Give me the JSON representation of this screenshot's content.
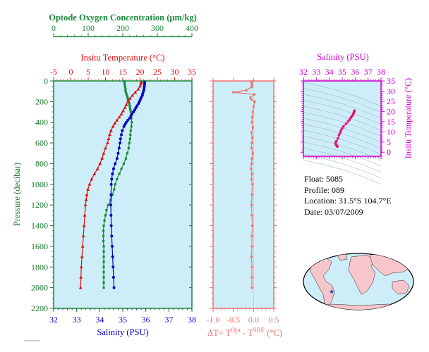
{
  "colors": {
    "oxygen": "#1a8a3a",
    "temperature": "#dd1111",
    "salinity": "#0000cc",
    "pressure_axis": "#1a7a2a",
    "delta": "#f07070",
    "ts": "#cc00cc",
    "plot_bg": "#cdeef8"
  },
  "chart_data": [
    {
      "type": "scatter",
      "name": "profiles",
      "axes": {
        "pressure": {
          "label": "Pressure (decibar)",
          "range": [
            0,
            2200
          ],
          "ticks": [
            0,
            200,
            400,
            600,
            800,
            1000,
            1200,
            1400,
            1600,
            1800,
            2000,
            2200
          ],
          "inverted": true
        },
        "salinity": {
          "label": "Salinity (PSU)",
          "range": [
            32,
            38
          ],
          "ticks": [
            32,
            33,
            34,
            35,
            36,
            37,
            38
          ]
        },
        "temperature": {
          "label": "Insitu Temperature (°C)",
          "range": [
            -5,
            35
          ],
          "ticks": [
            -5,
            0,
            5,
            10,
            15,
            20,
            25,
            30,
            35
          ]
        },
        "oxygen": {
          "label": "Optode Oxygen Concentration (μm/kg)",
          "range": [
            0,
            400
          ],
          "ticks": [
            0,
            100,
            200,
            300,
            400
          ]
        }
      },
      "series": [
        {
          "variable": "oxygen",
          "marker": "square",
          "points": [
            [
              5,
              205
            ],
            [
              20,
              205
            ],
            [
              40,
              206
            ],
            [
              60,
              207
            ],
            [
              80,
              208
            ],
            [
              100,
              208
            ],
            [
              120,
              210
            ],
            [
              140,
              212
            ],
            [
              160,
              214
            ],
            [
              180,
              215
            ],
            [
              200,
              217
            ],
            [
              220,
              219
            ],
            [
              240,
              220
            ],
            [
              260,
              221
            ],
            [
              280,
              222
            ],
            [
              300,
              223
            ],
            [
              330,
              224
            ],
            [
              360,
              225
            ],
            [
              400,
              226
            ],
            [
              440,
              225
            ],
            [
              480,
              223
            ],
            [
              520,
              222
            ],
            [
              560,
              221
            ],
            [
              600,
              219
            ],
            [
              650,
              217
            ],
            [
              700,
              213
            ],
            [
              750,
              209
            ],
            [
              800,
              203
            ],
            [
              850,
              196
            ],
            [
              900,
              190
            ],
            [
              950,
              183
            ],
            [
              1000,
              178
            ],
            [
              1050,
              175
            ],
            [
              1100,
              170
            ],
            [
              1150,
              165
            ],
            [
              1200,
              158
            ],
            [
              1250,
              153
            ],
            [
              1300,
              150
            ],
            [
              1350,
              147
            ],
            [
              1400,
              145
            ],
            [
              1450,
              144
            ],
            [
              1500,
              144
            ],
            [
              1550,
              144
            ],
            [
              1600,
              145
            ],
            [
              1650,
              145
            ],
            [
              1700,
              145
            ],
            [
              1750,
              145
            ],
            [
              1800,
              145
            ],
            [
              1850,
              145
            ],
            [
              1900,
              145
            ],
            [
              1950,
              145
            ],
            [
              2000,
              145
            ]
          ]
        },
        {
          "variable": "temperature",
          "marker": "triangle",
          "points": [
            [
              5,
              20.4
            ],
            [
              15,
              20.3
            ],
            [
              30,
              20.2
            ],
            [
              50,
              20.0
            ],
            [
              80,
              19.5
            ],
            [
              110,
              18.6
            ],
            [
              140,
              17.8
            ],
            [
              170,
              17.1
            ],
            [
              200,
              16.5
            ],
            [
              230,
              16.0
            ],
            [
              260,
              15.6
            ],
            [
              290,
              15.1
            ],
            [
              320,
              14.6
            ],
            [
              350,
              14.0
            ],
            [
              380,
              13.3
            ],
            [
              410,
              12.7
            ],
            [
              440,
              12.2
            ],
            [
              480,
              11.6
            ],
            [
              520,
              11.2
            ],
            [
              560,
              10.9
            ],
            [
              600,
              10.6
            ],
            [
              650,
              10.0
            ],
            [
              700,
              9.5
            ],
            [
              750,
              9.0
            ],
            [
              800,
              8.4
            ],
            [
              850,
              7.7
            ],
            [
              900,
              6.8
            ],
            [
              950,
              6.0
            ],
            [
              1000,
              5.4
            ],
            [
              1050,
              4.9
            ],
            [
              1100,
              4.6
            ],
            [
              1150,
              4.4
            ],
            [
              1200,
              4.2
            ],
            [
              1300,
              4.0
            ],
            [
              1400,
              3.8
            ],
            [
              1500,
              3.6
            ],
            [
              1600,
              3.4
            ],
            [
              1700,
              3.2
            ],
            [
              1800,
              3.0
            ],
            [
              1900,
              2.9
            ],
            [
              2000,
              2.8
            ]
          ]
        },
        {
          "variable": "salinity",
          "marker": "circle",
          "points": [
            [
              5,
              35.95
            ],
            [
              20,
              35.95
            ],
            [
              40,
              35.94
            ],
            [
              60,
              35.93
            ],
            [
              80,
              35.92
            ],
            [
              100,
              35.9
            ],
            [
              120,
              35.87
            ],
            [
              140,
              35.85
            ],
            [
              160,
              35.8
            ],
            [
              180,
              35.76
            ],
            [
              200,
              35.72
            ],
            [
              220,
              35.68
            ],
            [
              240,
              35.62
            ],
            [
              260,
              35.57
            ],
            [
              280,
              35.52
            ],
            [
              300,
              35.46
            ],
            [
              320,
              35.4
            ],
            [
              340,
              35.35
            ],
            [
              360,
              35.3
            ],
            [
              380,
              35.22
            ],
            [
              400,
              35.15
            ],
            [
              420,
              35.1
            ],
            [
              440,
              35.05
            ],
            [
              480,
              34.98
            ],
            [
              520,
              34.94
            ],
            [
              560,
              34.9
            ],
            [
              600,
              34.88
            ],
            [
              650,
              34.84
            ],
            [
              700,
              34.8
            ],
            [
              750,
              34.75
            ],
            [
              800,
              34.67
            ],
            [
              850,
              34.6
            ],
            [
              900,
              34.55
            ],
            [
              950,
              34.52
            ],
            [
              1000,
              34.5
            ],
            [
              1100,
              34.49
            ],
            [
              1200,
              34.48
            ],
            [
              1300,
              34.49
            ],
            [
              1400,
              34.5
            ],
            [
              1500,
              34.52
            ],
            [
              1600,
              34.54
            ],
            [
              1700,
              34.56
            ],
            [
              1800,
              34.58
            ],
            [
              1900,
              34.6
            ],
            [
              2000,
              34.62
            ]
          ]
        }
      ]
    },
    {
      "type": "line",
      "name": "delta_temperature",
      "axes": {
        "x": {
          "label_parts": [
            "ΔT= T",
            "Opt",
            " - T",
            "SBE",
            " (°C)"
          ],
          "range": [
            -1.0,
            0.5
          ],
          "ticks": [
            -1.0,
            -0.5,
            0.0,
            0.5
          ],
          "tick_labels": [
            "-1.0",
            "-0.5",
            "0.0",
            "0.5"
          ]
        },
        "pressure": {
          "range": [
            0,
            2200
          ]
        }
      },
      "points": [
        [
          5,
          -0.04
        ],
        [
          20,
          -0.05
        ],
        [
          40,
          -0.04
        ],
        [
          60,
          -0.05
        ],
        [
          90,
          -0.18
        ],
        [
          110,
          -0.5
        ],
        [
          130,
          0.02
        ],
        [
          160,
          -0.08
        ],
        [
          180,
          -0.05
        ],
        [
          200,
          0.03
        ],
        [
          250,
          0.0
        ],
        [
          300,
          -0.02
        ],
        [
          350,
          -0.03
        ],
        [
          400,
          -0.04
        ],
        [
          450,
          -0.02
        ],
        [
          500,
          -0.05
        ],
        [
          550,
          -0.03
        ],
        [
          600,
          -0.04
        ],
        [
          650,
          -0.05
        ],
        [
          700,
          -0.02
        ],
        [
          750,
          -0.04
        ],
        [
          800,
          -0.05
        ],
        [
          850,
          -0.06
        ],
        [
          900,
          -0.04
        ],
        [
          950,
          -0.05
        ],
        [
          1000,
          -0.03
        ],
        [
          1100,
          -0.04
        ],
        [
          1200,
          -0.05
        ],
        [
          1300,
          -0.04
        ],
        [
          1400,
          -0.03
        ],
        [
          1500,
          -0.04
        ],
        [
          1600,
          -0.04
        ],
        [
          1700,
          -0.05
        ],
        [
          1800,
          -0.04
        ],
        [
          1900,
          -0.04
        ],
        [
          2000,
          -0.04
        ]
      ]
    },
    {
      "type": "scatter",
      "name": "ts_diagram",
      "axes": {
        "x": {
          "label": "Salinity (PSU)",
          "range": [
            32,
            38
          ],
          "ticks": [
            32,
            33,
            34,
            35,
            36,
            37,
            38
          ]
        },
        "y": {
          "label": "Insitu Temperature (°C)",
          "range": [
            -2,
            35
          ],
          "ticks": [
            0,
            5,
            10,
            15,
            20,
            25,
            30,
            35
          ]
        }
      },
      "points": [
        [
          34.62,
          2.8
        ],
        [
          34.56,
          3.3
        ],
        [
          34.5,
          4.0
        ],
        [
          34.49,
          4.6
        ],
        [
          34.55,
          5.4
        ],
        [
          34.67,
          6.8
        ],
        [
          34.75,
          8.4
        ],
        [
          34.84,
          9.5
        ],
        [
          34.9,
          10.6
        ],
        [
          34.98,
          11.6
        ],
        [
          35.1,
          12.7
        ],
        [
          35.3,
          14.0
        ],
        [
          35.46,
          15.1
        ],
        [
          35.57,
          16.0
        ],
        [
          35.68,
          17.1
        ],
        [
          35.76,
          17.8
        ],
        [
          35.85,
          18.6
        ],
        [
          35.9,
          19.5
        ],
        [
          35.93,
          20.0
        ],
        [
          35.95,
          20.4
        ]
      ]
    }
  ],
  "info": {
    "float": "Float:  5085",
    "profile": "Profile:  089",
    "location": "Location:  31.5°S  104.7°E",
    "date": "Date:  03/07/2009"
  }
}
